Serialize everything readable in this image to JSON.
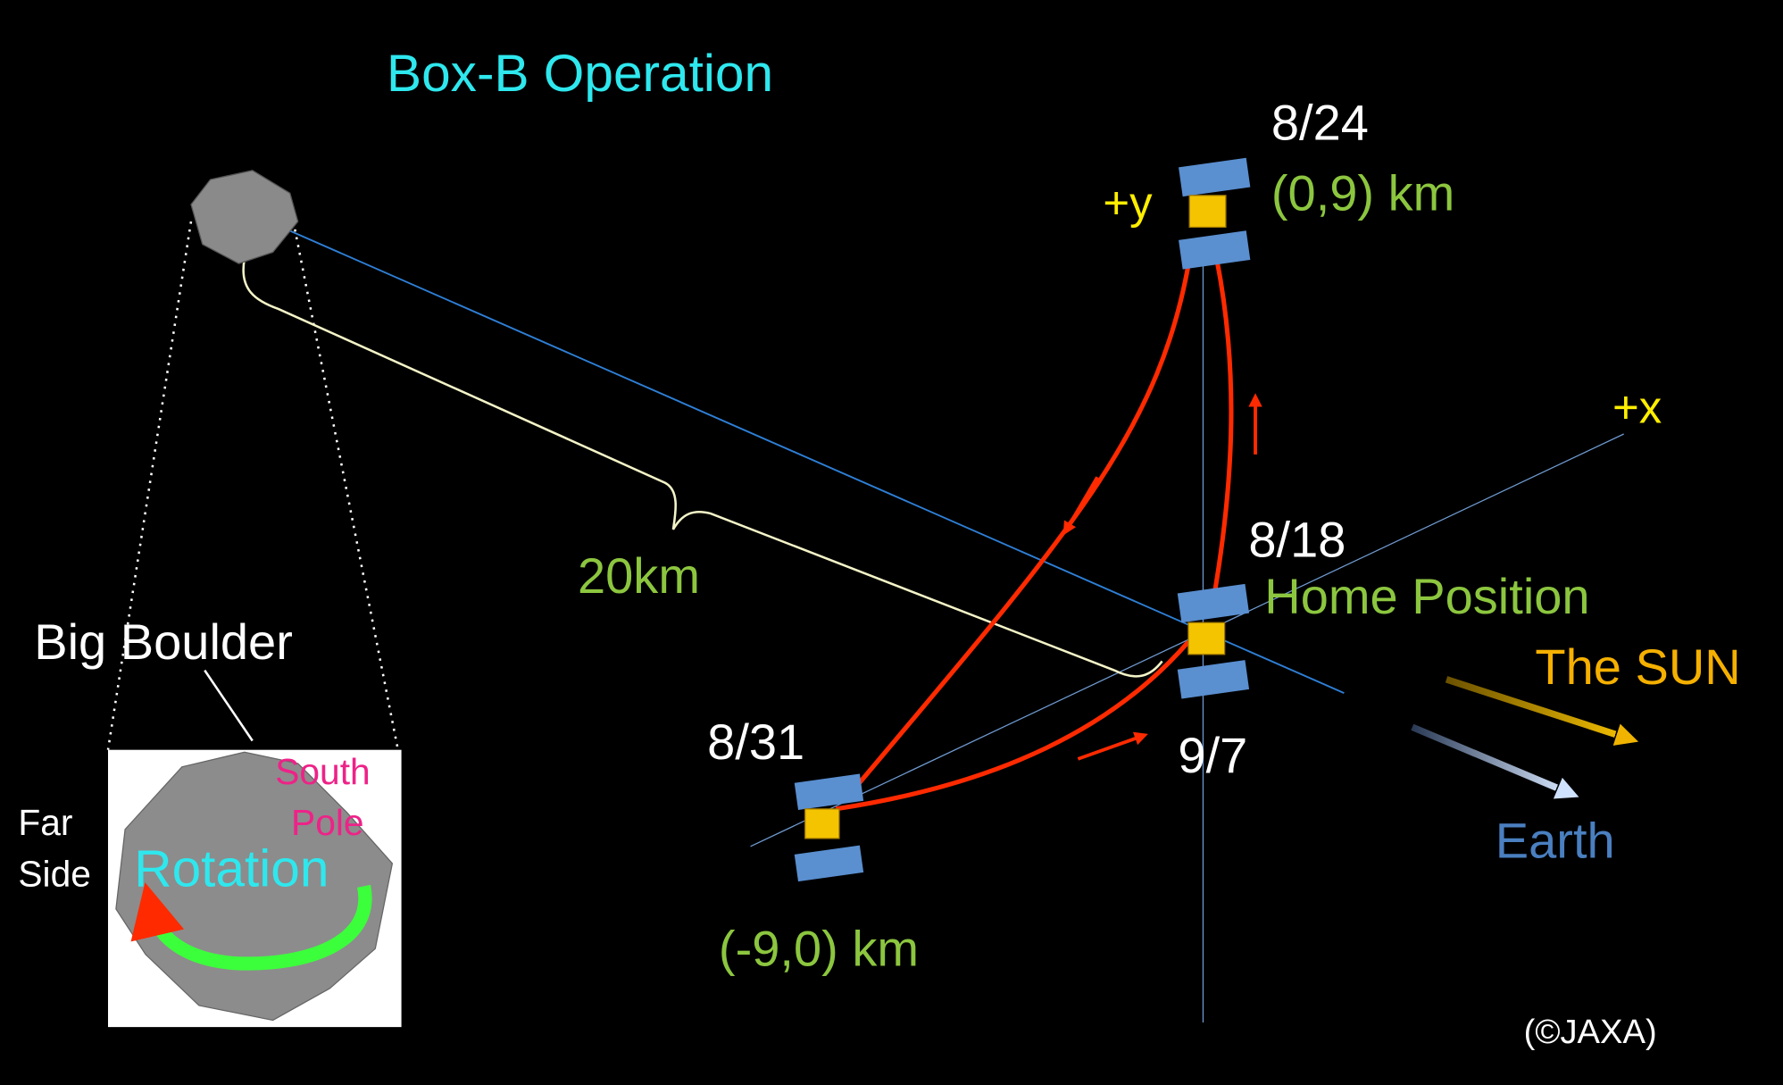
{
  "title": "Box-B Operation",
  "points": {
    "p824": {
      "date": "8/24",
      "coords": "(0,9) km"
    },
    "p818": {
      "date": "8/18",
      "label": "Home Position"
    },
    "p97": {
      "date": "9/7"
    },
    "p831": {
      "date": "8/31",
      "coords": "(-9,0) km"
    }
  },
  "axes": {
    "y": "+y",
    "x": "+x"
  },
  "distance": "20km",
  "directions": {
    "sun": "The SUN",
    "earth": "Earth"
  },
  "inset": {
    "pointer": "Big Boulder",
    "far_side": [
      "Far",
      "Side"
    ],
    "south_pole": [
      "South",
      "Pole"
    ],
    "rotation": "Rotation"
  },
  "credit": "(©JAXA)"
}
